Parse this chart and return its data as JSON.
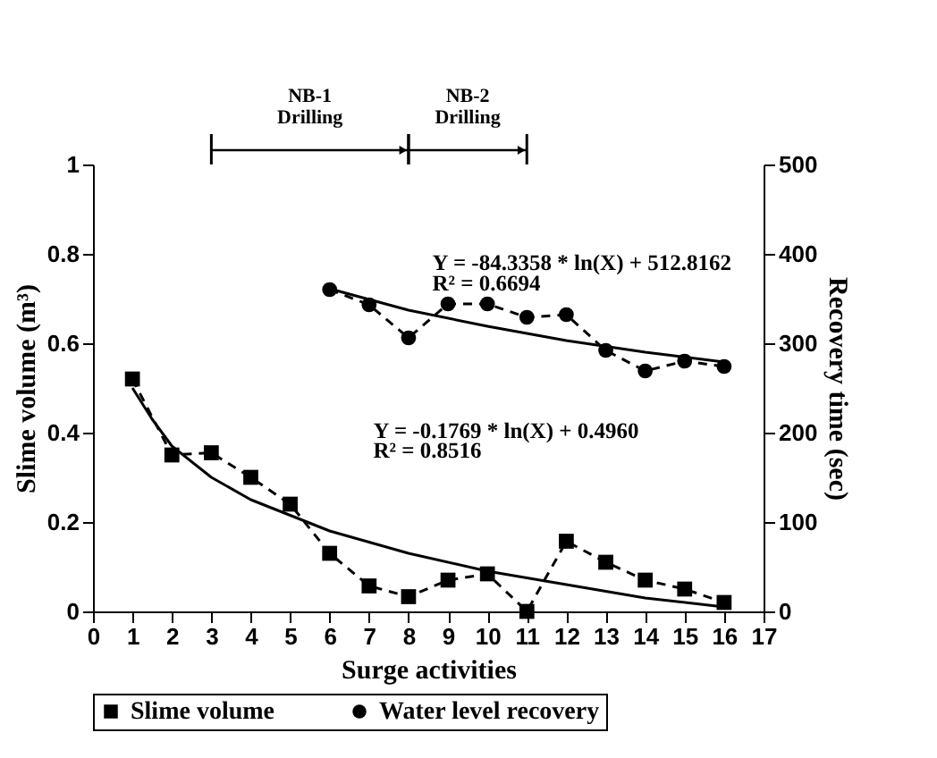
{
  "chart_data": {
    "type": "line",
    "xlabel": "Surge activities",
    "ylabel": "Slime volume (m³)",
    "y2label": "Recovery time (sec)",
    "xlim": [
      0,
      17
    ],
    "xticks": [
      0,
      1,
      2,
      3,
      4,
      5,
      6,
      7,
      8,
      9,
      10,
      11,
      12,
      13,
      14,
      15,
      16,
      17
    ],
    "ylim": [
      0,
      1
    ],
    "yticks": [
      0,
      0.2,
      0.4,
      0.6,
      0.8,
      1
    ],
    "y2lim": [
      0,
      500
    ],
    "y2ticks": [
      0,
      100,
      200,
      300,
      400,
      500
    ],
    "legend": "bottom",
    "series": [
      {
        "name": "Slime volume",
        "color": "#000000",
        "marker": "square",
        "line_style": "dashed",
        "axis": "y",
        "x": [
          1,
          2,
          3,
          4,
          5,
          6,
          7,
          8,
          9,
          10,
          11,
          12,
          13,
          14,
          15,
          16
        ],
        "values": [
          0.52,
          0.35,
          0.355,
          0.3,
          0.24,
          0.13,
          0.057,
          0.033,
          0.07,
          0.084,
          0,
          0.157,
          0.11,
          0.07,
          0.05,
          0.02
        ]
      },
      {
        "name": "Water level recovery",
        "color": "#000000",
        "marker": "circle",
        "line_style": "dashed",
        "axis": "y2",
        "x": [
          6,
          7,
          8,
          9,
          10,
          11,
          12,
          13,
          14,
          15,
          16
        ],
        "values": [
          360,
          343,
          306,
          344,
          344,
          329,
          332,
          292,
          269,
          280,
          274
        ]
      },
      {
        "type": "line",
        "color": "#000000",
        "marker": "none",
        "line_style": "solid",
        "axis": "y",
        "x": [
          1,
          1.5,
          2,
          3,
          4,
          6,
          8,
          10,
          12,
          14,
          16
        ],
        "values": [
          0.5,
          0.43,
          0.37,
          0.3,
          0.25,
          0.18,
          0.13,
          0.09,
          0.06,
          0.03,
          0.01
        ]
      },
      {
        "type": "line",
        "color": "#000000",
        "marker": "none",
        "line_style": "solid",
        "axis": "y2",
        "x": [
          6,
          8,
          10,
          12,
          14,
          16
        ],
        "values": [
          361,
          337,
          319,
          303,
          290,
          279
        ]
      }
    ],
    "annotations": [
      "Y = -84.3358 * ln(X) + 512.8162",
      "R² = 0.6694",
      "Y = -0.1769 * ln(X) + 0.4960",
      "R² = 0.8516",
      "NB-1 Drilling",
      "NB-2 Drilling"
    ]
  }
}
